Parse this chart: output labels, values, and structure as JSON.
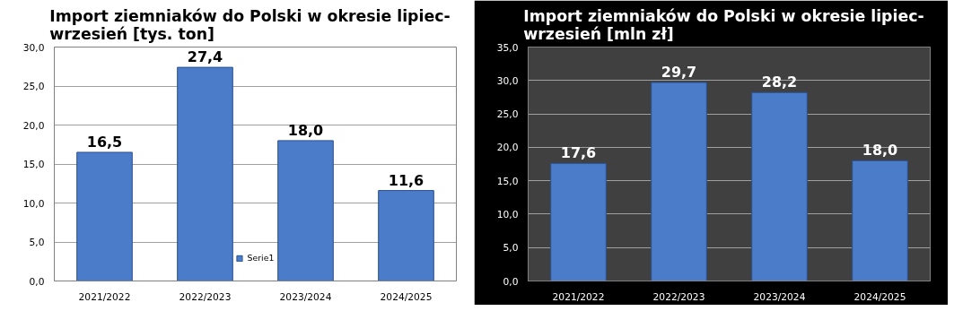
{
  "chart_data": [
    {
      "type": "bar",
      "title": "Import ziemniaków  do Polski  w okresie lipiec-\nwrzesień [tys. ton]",
      "categories": [
        "2021/2022",
        "2022/2023",
        "2023/2024",
        "2024/2025"
      ],
      "series": [
        {
          "name": "Serie1",
          "color": "#4a7cc9",
          "values": [
            16.5,
            27.4,
            18.0,
            11.6
          ]
        }
      ],
      "value_labels": [
        "16,5",
        "27,4",
        "18,0",
        "11,6"
      ],
      "ylim": [
        0,
        30
      ],
      "yticks": [
        {
          "value": 0,
          "label": "0,0"
        },
        {
          "value": 5,
          "label": "5,0"
        },
        {
          "value": 10,
          "label": "10,0"
        },
        {
          "value": 15,
          "label": "15,0"
        },
        {
          "value": 20,
          "label": "20,0"
        },
        {
          "value": 25,
          "label": "25,0"
        },
        {
          "value": 30,
          "label": "30,0"
        }
      ],
      "grid": "y",
      "legend": "bottom"
    },
    {
      "type": "bar",
      "title": "Import ziemniaków  do Polski  w okresie lipiec-\nwrzesień [mln zł]",
      "categories": [
        "2021/2022",
        "2022/2023",
        "2023/2024",
        "2024/2025"
      ],
      "series": [
        {
          "color": "#4a7cc9",
          "values": [
            17.6,
            29.7,
            28.2,
            18.0
          ]
        }
      ],
      "value_labels": [
        "17,6",
        "29,7",
        "28,2",
        "18,0"
      ],
      "ylim": [
        0,
        35
      ],
      "yticks": [
        {
          "value": 0,
          "label": "0,0"
        },
        {
          "value": 5,
          "label": "5,0"
        },
        {
          "value": 10,
          "label": "10,0"
        },
        {
          "value": 15,
          "label": "15,0"
        },
        {
          "value": 20,
          "label": "20,0"
        },
        {
          "value": 25,
          "label": "25,0"
        },
        {
          "value": 30,
          "label": "30,0"
        },
        {
          "value": 35,
          "label": "35,0"
        }
      ],
      "grid": "y"
    }
  ]
}
